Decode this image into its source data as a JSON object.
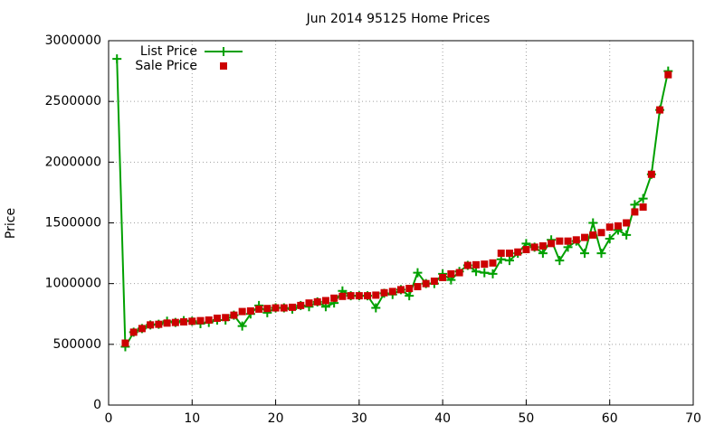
{
  "chart_data": {
    "type": "line",
    "title": "Jun 2014 95125 Home Prices",
    "y_label": "Price",
    "xlim": [
      0,
      70
    ],
    "xticks": [
      0,
      10,
      20,
      30,
      40,
      50,
      60,
      70
    ],
    "ylim": [
      0,
      3000000
    ],
    "yticks": [
      0,
      500000,
      1000000,
      1500000,
      2000000,
      2500000,
      3000000
    ],
    "grid": true,
    "legend": "top-left",
    "series": [
      {
        "name": "List Price",
        "color": "#00a000",
        "style": "linespoints",
        "x": [
          1,
          2,
          3,
          4,
          5,
          6,
          7,
          8,
          9,
          10,
          11,
          12,
          13,
          14,
          15,
          16,
          17,
          18,
          19,
          20,
          21,
          22,
          23,
          24,
          25,
          26,
          27,
          28,
          29,
          30,
          31,
          32,
          33,
          34,
          35,
          36,
          37,
          38,
          39,
          40,
          41,
          42,
          43,
          44,
          45,
          46,
          47,
          48,
          49,
          50,
          51,
          52,
          53,
          54,
          55,
          56,
          57,
          58,
          59,
          60,
          61,
          62,
          63,
          64,
          65,
          66,
          67
        ],
        "values": [
          2850000,
          480000,
          600000,
          630000,
          660000,
          665000,
          690000,
          680000,
          695000,
          690000,
          670000,
          680000,
          700000,
          700000,
          740000,
          650000,
          750000,
          820000,
          760000,
          800000,
          800000,
          790000,
          820000,
          810000,
          850000,
          810000,
          840000,
          940000,
          900000,
          900000,
          900000,
          800000,
          920000,
          910000,
          950000,
          900000,
          1090000,
          1000000,
          1000000,
          1080000,
          1030000,
          1100000,
          1150000,
          1100000,
          1090000,
          1080000,
          1200000,
          1190000,
          1250000,
          1330000,
          1300000,
          1250000,
          1360000,
          1190000,
          1300000,
          1350000,
          1250000,
          1500000,
          1250000,
          1370000,
          1440000,
          1400000,
          1650000,
          1700000,
          1900000,
          2430000,
          2750000
        ]
      },
      {
        "name": "Sale Price",
        "color": "#cc0000",
        "style": "points",
        "x": [
          2,
          3,
          4,
          5,
          6,
          7,
          8,
          9,
          10,
          11,
          12,
          13,
          14,
          15,
          16,
          17,
          18,
          19,
          20,
          21,
          22,
          23,
          24,
          25,
          26,
          27,
          28,
          29,
          30,
          31,
          32,
          33,
          34,
          35,
          36,
          37,
          38,
          39,
          40,
          41,
          42,
          43,
          44,
          45,
          46,
          47,
          48,
          49,
          50,
          51,
          52,
          53,
          54,
          55,
          56,
          57,
          58,
          59,
          60,
          61,
          62,
          63,
          64,
          65,
          66,
          67
        ],
        "values": [
          510000,
          600000,
          630000,
          660000,
          665000,
          675000,
          680000,
          685000,
          690000,
          695000,
          700000,
          715000,
          720000,
          740000,
          770000,
          775000,
          790000,
          795000,
          800000,
          800000,
          805000,
          820000,
          840000,
          850000,
          860000,
          880000,
          895000,
          900000,
          900000,
          900000,
          905000,
          925000,
          935000,
          950000,
          960000,
          975000,
          1000000,
          1020000,
          1050000,
          1080000,
          1090000,
          1150000,
          1155000,
          1160000,
          1170000,
          1250000,
          1250000,
          1260000,
          1280000,
          1300000,
          1310000,
          1330000,
          1350000,
          1350000,
          1360000,
          1380000,
          1400000,
          1420000,
          1465000,
          1475000,
          1500000,
          1590000,
          1630000,
          1900000,
          2430000,
          2720000
        ]
      }
    ]
  }
}
